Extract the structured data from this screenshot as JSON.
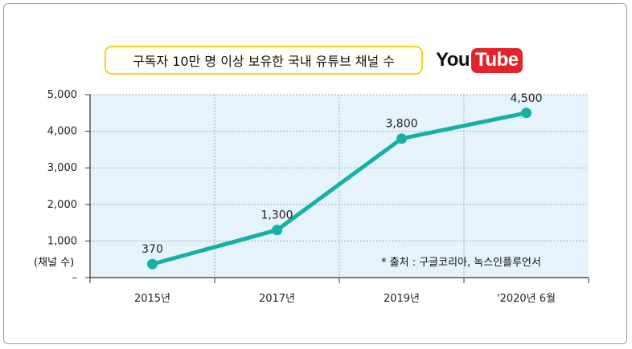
{
  "title": "구독자 10만 명 이상 보유한 국내 유튜브 채널 수",
  "logo": {
    "part1": "You",
    "part2": "Tube"
  },
  "unit_label": "(채널 수)",
  "source": "* 출처 : 구글코리아, 녹스인플루언서",
  "colors": {
    "line": "#17b0a6",
    "plot_bg": "#e6f3fa",
    "grid": "#9bb0bd",
    "title_border": "#f4d21e",
    "logo_red": "#e4232a"
  },
  "chart_data": {
    "type": "line",
    "categories": [
      "2015년",
      "2017년",
      "2019년",
      "'2020년 6월"
    ],
    "series": [
      {
        "values": [
          370,
          1300,
          3800,
          4500
        ]
      }
    ],
    "data_labels": [
      "370",
      "1,300",
      "3,800",
      "4,500"
    ],
    "yticks": [
      "–",
      "1,000",
      "2,000",
      "3,000",
      "4,000",
      "5,000"
    ],
    "ylim": [
      0,
      5000
    ],
    "ylabel": "(채널 수)",
    "xlabel": "",
    "grid": true
  }
}
